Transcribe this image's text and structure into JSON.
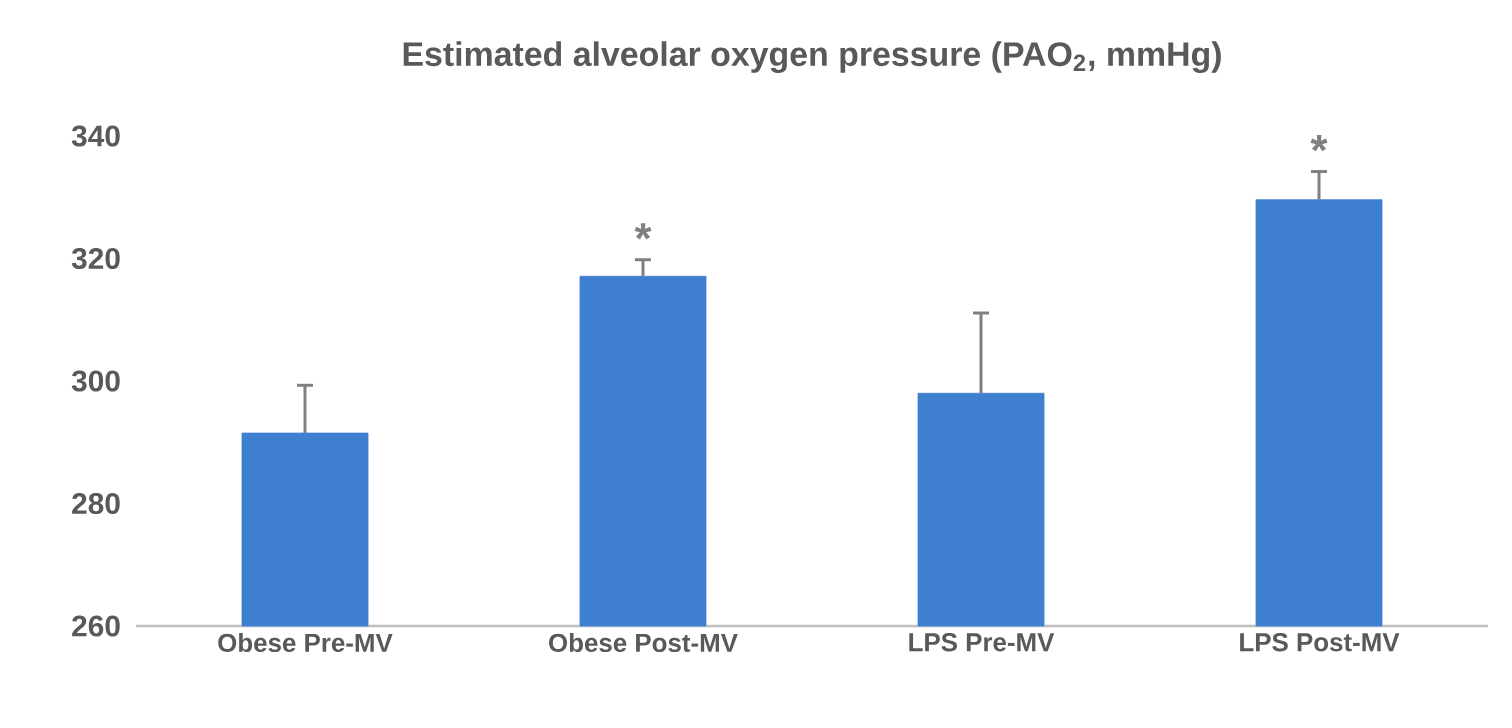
{
  "chart_data": {
    "type": "bar",
    "title": "Estimated alveolar oxygen pressure (PAO$_{2}$, mmHg)",
    "categories": [
      "Obese Pre-MV",
      "Obese Post-MV",
      "LPS Pre-MV",
      "LPS Post-MV"
    ],
    "values": [
      291.5,
      317.1,
      298.0,
      329.6
    ],
    "errors": [
      7.8,
      2.7,
      13.1,
      4.6
    ],
    "color": "#3f7fd0",
    "ylim": [
      260,
      340
    ],
    "yticks": [
      260,
      280,
      300,
      320,
      340
    ],
    "grid": false,
    "annotations": [
      {
        "text": "*",
        "x": "Obese Post-MV",
        "y": 317.1
      },
      {
        "text": "*",
        "x": "LPS Post-MV",
        "y": 329.6
      }
    ]
  }
}
